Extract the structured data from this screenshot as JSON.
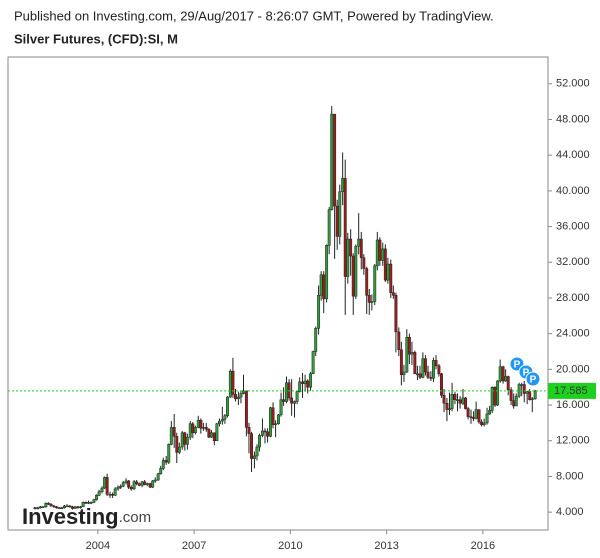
{
  "chart_data": {
    "type": "candlestick",
    "published": "Published on Investing.com, 29/Aug/2017 - 8:26:07 GMT, Powered by TradingView.",
    "title": "Silver Futures, (CFD):SI, M",
    "logo": [
      "Investing",
      ".com"
    ],
    "markers": [
      "P",
      "P",
      "P"
    ],
    "up_color": "#2f9e3a",
    "down_color": "#9b1c1c",
    "last_color": "#1fd11f",
    "xlim": [
      2001.2,
      2018.03
    ],
    "xticks": [
      2004,
      2007,
      2010,
      2013,
      2016
    ],
    "ylim": [
      2,
      55
    ],
    "yticks": [
      {
        "value": 4,
        "label": "4.000"
      },
      {
        "value": 8,
        "label": "8.000"
      },
      {
        "value": 12,
        "label": "12.000"
      },
      {
        "value": 16,
        "label": "16.000"
      },
      {
        "value": 20,
        "label": "20.000"
      },
      {
        "value": 24,
        "label": "24.000"
      },
      {
        "value": 28,
        "label": "28.000"
      },
      {
        "value": 32,
        "label": "32.000"
      },
      {
        "value": 36,
        "label": "36.000"
      },
      {
        "value": 40,
        "label": "40.000"
      },
      {
        "value": 44,
        "label": "44.000"
      },
      {
        "value": 48,
        "label": "48.000"
      },
      {
        "value": 52,
        "label": "52.000"
      }
    ],
    "x": [
      2002.04,
      2002.13,
      2002.21,
      2002.29,
      2002.38,
      2002.46,
      2002.54,
      2002.63,
      2002.71,
      2002.79,
      2002.88,
      2002.96,
      2003.04,
      2003.13,
      2003.21,
      2003.29,
      2003.38,
      2003.46,
      2003.54,
      2003.63,
      2003.71,
      2003.79,
      2003.88,
      2003.96,
      2004.04,
      2004.13,
      2004.21,
      2004.29,
      2004.38,
      2004.46,
      2004.54,
      2004.63,
      2004.71,
      2004.79,
      2004.88,
      2004.96,
      2005.04,
      2005.13,
      2005.21,
      2005.29,
      2005.38,
      2005.46,
      2005.54,
      2005.63,
      2005.71,
      2005.79,
      2005.88,
      2005.96,
      2006.04,
      2006.13,
      2006.21,
      2006.29,
      2006.38,
      2006.46,
      2006.54,
      2006.63,
      2006.71,
      2006.79,
      2006.88,
      2006.96,
      2007.04,
      2007.13,
      2007.21,
      2007.29,
      2007.38,
      2007.46,
      2007.54,
      2007.63,
      2007.71,
      2007.79,
      2007.88,
      2007.96,
      2008.04,
      2008.13,
      2008.21,
      2008.29,
      2008.38,
      2008.46,
      2008.54,
      2008.63,
      2008.71,
      2008.79,
      2008.88,
      2008.96,
      2009.04,
      2009.13,
      2009.21,
      2009.29,
      2009.38,
      2009.46,
      2009.54,
      2009.63,
      2009.71,
      2009.79,
      2009.88,
      2009.96,
      2010.04,
      2010.13,
      2010.21,
      2010.29,
      2010.38,
      2010.46,
      2010.54,
      2010.63,
      2010.71,
      2010.79,
      2010.88,
      2010.96,
      2011.04,
      2011.13,
      2011.21,
      2011.29,
      2011.38,
      2011.46,
      2011.54,
      2011.63,
      2011.71,
      2011.79,
      2011.88,
      2011.96,
      2012.04,
      2012.13,
      2012.21,
      2012.29,
      2012.38,
      2012.46,
      2012.54,
      2012.63,
      2012.71,
      2012.79,
      2012.88,
      2012.96,
      2013.04,
      2013.13,
      2013.21,
      2013.29,
      2013.38,
      2013.46,
      2013.54,
      2013.63,
      2013.71,
      2013.79,
      2013.88,
      2013.96,
      2014.04,
      2014.13,
      2014.21,
      2014.29,
      2014.38,
      2014.46,
      2014.54,
      2014.63,
      2014.71,
      2014.79,
      2014.88,
      2014.96,
      2015.04,
      2015.13,
      2015.21,
      2015.29,
      2015.38,
      2015.46,
      2015.54,
      2015.63,
      2015.71,
      2015.79,
      2015.88,
      2015.96,
      2016.04,
      2016.13,
      2016.21,
      2016.29,
      2016.38,
      2016.46,
      2016.54,
      2016.63,
      2016.71,
      2016.79,
      2016.88,
      2016.96,
      2017.04,
      2017.13,
      2017.21,
      2017.29,
      2017.38,
      2017.46,
      2017.54,
      2017.63
    ],
    "open": [
      4.5,
      4.4,
      4.5,
      4.6,
      4.6,
      5.0,
      4.9,
      4.7,
      4.6,
      4.5,
      4.5,
      4.5,
      4.7,
      4.7,
      4.6,
      4.4,
      4.6,
      4.5,
      4.6,
      5.1,
      5.0,
      5.1,
      5.1,
      5.4,
      5.9,
      6.3,
      6.7,
      7.9,
      6.0,
      6.0,
      5.9,
      6.6,
      6.8,
      6.9,
      7.3,
      7.5,
      6.8,
      6.6,
      7.4,
      7.2,
      7.0,
      7.4,
      7.1,
      7.2,
      6.8,
      7.5,
      7.6,
      8.3,
      8.9,
      9.8,
      9.6,
      11.6,
      13.5,
      12.5,
      10.7,
      11.3,
      12.9,
      11.6,
      12.4,
      13.9,
      12.9,
      13.5,
      14.3,
      13.4,
      13.5,
      13.3,
      12.4,
      12.9,
      12.0,
      13.9,
      14.2,
      14.4,
      14.8,
      16.9,
      19.8,
      17.2,
      16.7,
      16.9,
      17.3,
      17.6,
      13.5,
      12.8,
      10.0,
      10.3,
      11.3,
      12.6,
      13.1,
      13.0,
      12.5,
      15.7,
      13.8,
      13.9,
      14.9,
      16.6,
      16.4,
      18.5,
      16.8,
      16.2,
      16.4,
      17.5,
      18.6,
      18.4,
      18.7,
      18.0,
      19.5,
      22.0,
      24.6,
      28.3,
      30.6,
      27.9,
      33.9,
      37.9,
      48.6,
      38.3,
      34.9,
      39.9,
      41.4,
      30.4,
      34.6,
      32.7,
      28.2,
      33.8,
      34.6,
      32.5,
      31.3,
      28.3,
      27.5,
      27.6,
      31.6,
      34.5,
      32.2,
      33.5,
      30.0,
      31.8,
      28.6,
      28.3,
      24.2,
      22.2,
      19.4,
      19.7,
      23.6,
      21.7,
      21.9,
      19.5,
      19.5,
      19.1,
      21.2,
      19.7,
      19.1,
      19.0,
      21.0,
      20.4,
      19.5,
      17.1,
      16.2,
      15.5,
      15.6,
      17.2,
      16.6,
      16.6,
      16.2,
      16.8,
      15.6,
      14.7,
      14.6,
      14.5,
      15.5,
      14.1,
      13.8,
      14.0,
      15.0,
      15.4,
      18.0,
      16.0,
      18.7,
      20.3,
      18.7,
      19.2,
      17.7,
      16.5,
      15.9,
      17.0,
      18.3,
      18.3,
      17.3,
      17.5,
      16.6,
      16.7
    ],
    "high": [
      4.6,
      4.6,
      4.7,
      4.7,
      5.1,
      5.1,
      5.0,
      4.8,
      4.7,
      4.6,
      4.6,
      4.8,
      4.9,
      4.8,
      4.7,
      4.7,
      4.7,
      4.7,
      5.2,
      5.2,
      5.3,
      5.2,
      5.5,
      6.0,
      6.5,
      6.9,
      8.0,
      8.3,
      6.3,
      6.2,
      6.8,
      7.0,
      7.1,
      7.5,
      7.8,
      7.6,
      7.0,
      7.6,
      7.6,
      7.3,
      7.5,
      7.6,
      7.3,
      7.3,
      7.6,
      7.9,
      8.4,
      9.2,
      10.1,
      10.3,
      11.7,
      14.2,
      15.0,
      12.9,
      11.8,
      13.1,
      13.0,
      12.8,
      14.2,
      14.1,
      13.7,
      14.8,
      14.5,
      14.0,
      14.0,
      13.4,
      13.2,
      12.9,
      14.0,
      14.5,
      15.8,
      15.0,
      17.0,
      20.0,
      21.3,
      17.8,
      17.5,
      17.6,
      19.4,
      17.6,
      14.0,
      13.0,
      10.8,
      11.6,
      12.8,
      14.5,
      13.4,
      13.4,
      15.8,
      16.3,
      14.3,
      15.0,
      17.4,
      18.0,
      19.2,
      18.9,
      18.9,
      16.5,
      17.6,
      19.1,
      19.6,
      19.4,
      18.9,
      19.7,
      22.1,
      24.8,
      29.4,
      31.0,
      31.0,
      34.0,
      38.2,
      49.5,
      48.6,
      39.0,
      40.7,
      44.3,
      43.5,
      35.3,
      35.7,
      33.0,
      34.0,
      37.5,
      35.4,
      32.9,
      31.5,
      29.0,
      28.4,
      31.8,
      35.4,
      34.8,
      34.2,
      34.0,
      32.5,
      32.3,
      29.4,
      28.6,
      24.7,
      23.1,
      20.5,
      24.5,
      24.0,
      23.1,
      22.1,
      20.4,
      20.4,
      21.9,
      21.6,
      20.4,
      19.8,
      21.3,
      21.6,
      20.6,
      19.6,
      17.8,
      16.8,
      17.4,
      18.5,
      17.5,
      17.3,
      17.0,
      17.8,
      16.9,
      15.8,
      15.5,
      15.3,
      16.4,
      15.5,
      14.4,
      14.5,
      15.7,
      15.9,
      18.1,
      18.1,
      18.8,
      21.1,
      20.4,
      20.0,
      19.3,
      18.0,
      17.3,
      17.3,
      18.5,
      18.5,
      18.7,
      17.6,
      17.8,
      16.9,
      17.7
    ],
    "low": [
      4.3,
      4.3,
      4.4,
      4.5,
      4.5,
      4.8,
      4.6,
      4.5,
      4.4,
      4.4,
      4.4,
      4.4,
      4.6,
      4.5,
      4.3,
      4.4,
      4.4,
      4.4,
      4.6,
      4.9,
      4.9,
      4.9,
      5.0,
      5.3,
      5.8,
      6.1,
      6.6,
      5.8,
      5.6,
      5.6,
      5.8,
      6.4,
      6.6,
      6.8,
      7.1,
      6.6,
      6.4,
      6.5,
      7.0,
      6.9,
      6.8,
      7.0,
      6.9,
      6.7,
      6.7,
      7.3,
      7.5,
      8.2,
      8.7,
      9.3,
      9.4,
      11.5,
      11.2,
      9.5,
      10.5,
      11.0,
      10.9,
      11.0,
      12.1,
      12.3,
      12.7,
      13.4,
      12.8,
      13.1,
      13.0,
      12.3,
      12.3,
      11.5,
      12.0,
      13.6,
      13.8,
      13.9,
      14.6,
      16.8,
      16.8,
      16.4,
      16.0,
      16.2,
      17.2,
      12.5,
      10.6,
      8.5,
      8.9,
      9.8,
      10.8,
      12.4,
      11.7,
      11.8,
      12.4,
      13.4,
      12.4,
      13.8,
      14.7,
      15.9,
      16.2,
      16.5,
      14.8,
      14.6,
      16.1,
      17.4,
      16.8,
      17.5,
      17.3,
      17.6,
      19.5,
      21.5,
      23.9,
      27.7,
      26.3,
      27.5,
      32.9,
      37.8,
      32.4,
      33.4,
      34.0,
      38.4,
      26.1,
      29.6,
      30.5,
      26.1,
      27.9,
      32.9,
      31.2,
      30.6,
      26.2,
      26.1,
      26.6,
      27.2,
      31.1,
      31.6,
      31.6,
      29.8,
      29.6,
      28.0,
      27.9,
      21.9,
      21.5,
      18.2,
      18.6,
      19.6,
      20.6,
      20.5,
      19.5,
      18.8,
      18.9,
      19.0,
      19.3,
      18.9,
      18.7,
      18.6,
      20.0,
      19.2,
      16.8,
      15.2,
      14.2,
      14.9,
      15.3,
      16.1,
      15.3,
      15.6,
      16.0,
      15.5,
      14.4,
      13.9,
      14.2,
      14.4,
      13.9,
      13.6,
      13.6,
      13.8,
      14.9,
      15.1,
      15.8,
      15.9,
      18.5,
      18.4,
      18.6,
      17.1,
      16.0,
      15.6,
      15.9,
      16.8,
      17.0,
      16.3,
      16.1,
      16.5,
      15.2,
      16.6
    ],
    "close": [
      4.4,
      4.5,
      4.6,
      4.6,
      5.0,
      4.9,
      4.7,
      4.6,
      4.5,
      4.5,
      4.5,
      4.7,
      4.7,
      4.6,
      4.4,
      4.6,
      4.5,
      4.6,
      5.1,
      5.0,
      5.1,
      5.1,
      5.4,
      5.9,
      6.3,
      6.7,
      7.9,
      6.0,
      6.0,
      5.9,
      6.6,
      6.8,
      6.9,
      7.3,
      7.5,
      6.8,
      6.6,
      7.4,
      7.2,
      7.0,
      7.4,
      7.1,
      7.2,
      6.8,
      7.5,
      7.6,
      8.3,
      8.9,
      9.8,
      9.6,
      11.6,
      13.5,
      12.5,
      10.7,
      11.3,
      12.9,
      11.6,
      12.4,
      13.9,
      12.9,
      13.5,
      14.3,
      13.4,
      13.5,
      13.3,
      12.4,
      12.9,
      12.0,
      13.9,
      14.2,
      14.4,
      14.8,
      16.9,
      19.8,
      17.2,
      16.7,
      16.9,
      17.3,
      17.6,
      13.5,
      12.8,
      10.0,
      10.3,
      11.3,
      12.6,
      13.1,
      13.0,
      12.5,
      15.7,
      13.8,
      13.9,
      14.9,
      16.6,
      16.4,
      18.5,
      16.8,
      16.2,
      16.4,
      17.5,
      18.6,
      18.4,
      18.7,
      18.0,
      19.5,
      22.0,
      24.6,
      28.3,
      30.6,
      27.9,
      33.9,
      37.9,
      48.6,
      38.3,
      34.9,
      39.9,
      41.4,
      30.4,
      34.6,
      32.7,
      28.2,
      33.8,
      34.6,
      32.5,
      31.3,
      28.3,
      27.5,
      27.6,
      31.6,
      34.5,
      32.2,
      33.5,
      30.0,
      31.8,
      28.6,
      28.3,
      24.2,
      22.2,
      19.4,
      19.7,
      23.6,
      21.7,
      21.9,
      19.5,
      19.5,
      19.1,
      21.2,
      19.7,
      19.1,
      19.0,
      21.0,
      20.4,
      19.5,
      17.1,
      16.2,
      15.5,
      15.6,
      17.2,
      16.6,
      16.6,
      16.2,
      16.8,
      15.6,
      14.7,
      14.6,
      14.5,
      15.5,
      14.1,
      13.8,
      14.0,
      15.0,
      15.4,
      18.0,
      16.0,
      18.7,
      20.3,
      18.7,
      19.2,
      17.7,
      16.5,
      15.9,
      17.0,
      18.3,
      18.3,
      17.3,
      17.5,
      16.6,
      16.7,
      17.585
    ]
  }
}
